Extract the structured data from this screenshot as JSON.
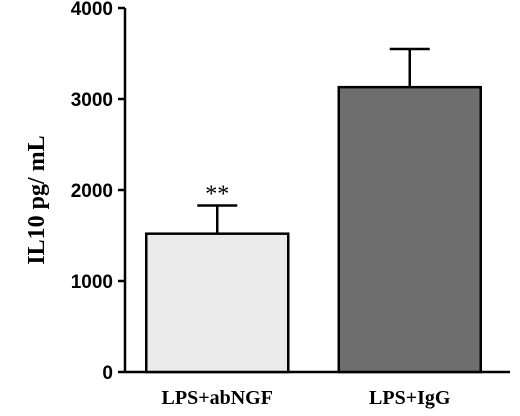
{
  "chart_data": {
    "type": "bar",
    "title": "",
    "xlabel": "",
    "ylabel": "IL10 pg/ mL",
    "ylim": [
      0,
      4000
    ],
    "yticks": [
      "0",
      "1000",
      "2000",
      "3000",
      "4000"
    ],
    "categories": [
      "LPS+abNGF",
      "LPS+IgG"
    ],
    "values": [
      1520,
      3130
    ],
    "error_upper": [
      310,
      420
    ],
    "bar_colors": [
      "#ebebeb",
      "#6e6e6e"
    ],
    "annotations": [
      "**",
      ""
    ],
    "grid": false
  }
}
